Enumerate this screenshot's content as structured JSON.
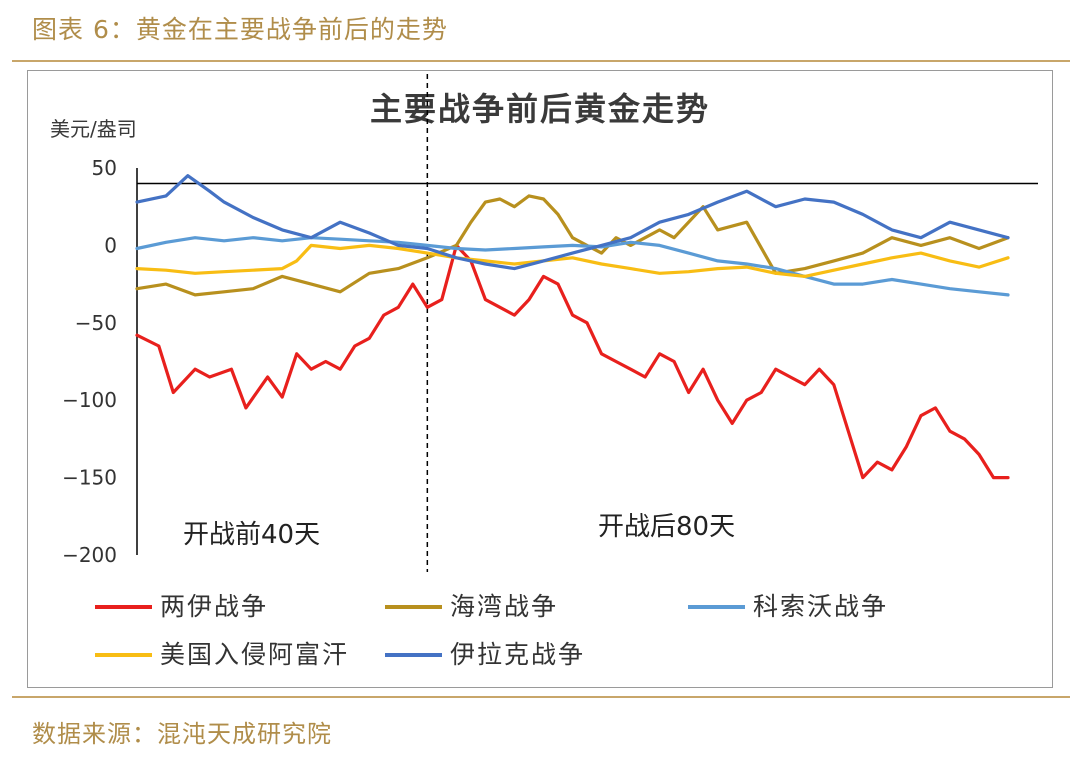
{
  "header": {
    "caption": "图表 6：黄金在主要战争前后的走势"
  },
  "footer": {
    "source": "数据来源：混沌天成研究院"
  },
  "chart_data": {
    "type": "line",
    "title": "主要战争前后黄金走势",
    "ylabel": "美元/盎司",
    "ylim": [
      -200,
      50
    ],
    "yticks": [
      50,
      0,
      -50,
      -100,
      -150,
      -200
    ],
    "x_range": [
      -40,
      80
    ],
    "war_start_day": 0,
    "reference_line_y": 40,
    "annotations": {
      "before": "开战前40天",
      "after": "开战后80天"
    },
    "series": [
      {
        "name": "两伊战争",
        "color": "#e8201d",
        "x": [
          -40,
          -37,
          -35,
          -32,
          -30,
          -27,
          -25,
          -22,
          -20,
          -18,
          -16,
          -14,
          -12,
          -10,
          -8,
          -6,
          -4,
          -2,
          0,
          2,
          4,
          6,
          8,
          10,
          12,
          14,
          16,
          18,
          20,
          22,
          24,
          26,
          28,
          30,
          32,
          34,
          36,
          38,
          40,
          42,
          44,
          46,
          48,
          50,
          52,
          54,
          56,
          58,
          60,
          62,
          64,
          66,
          68,
          70,
          72,
          74,
          76,
          78,
          80
        ],
        "values": [
          -58,
          -65,
          -95,
          -80,
          -85,
          -80,
          -105,
          -85,
          -98,
          -70,
          -80,
          -75,
          -80,
          -65,
          -60,
          -45,
          -40,
          -25,
          -40,
          -35,
          0,
          -10,
          -35,
          -40,
          -45,
          -35,
          -20,
          -25,
          -45,
          -50,
          -70,
          -75,
          -80,
          -85,
          -70,
          -75,
          -95,
          -80,
          -100,
          -115,
          -100,
          -95,
          -80,
          -85,
          -90,
          -80,
          -90,
          -120,
          -150,
          -140,
          -145,
          -130,
          -110,
          -105,
          -120,
          -125,
          -135,
          -150,
          -150
        ],
        "values_note": ""
      },
      {
        "name": "海湾战争",
        "color": "#b8901e",
        "x": [
          -40,
          -36,
          -32,
          -28,
          -24,
          -20,
          -16,
          -12,
          -8,
          -4,
          0,
          4,
          6,
          8,
          10,
          12,
          14,
          16,
          18,
          20,
          22,
          24,
          26,
          28,
          30,
          32,
          34,
          36,
          38,
          40,
          44,
          48,
          52,
          56,
          60,
          64,
          68,
          72,
          76,
          80
        ],
        "values": [
          -28,
          -25,
          -32,
          -30,
          -28,
          -20,
          -25,
          -30,
          -18,
          -15,
          -8,
          0,
          15,
          28,
          30,
          25,
          32,
          30,
          20,
          5,
          0,
          -5,
          5,
          0,
          5,
          10,
          5,
          15,
          25,
          10,
          15,
          -18,
          -15,
          -10,
          -5,
          5,
          0,
          5,
          -2,
          5
        ]
      },
      {
        "name": "科索沃战争",
        "color": "#5b9bd5",
        "x": [
          -40,
          -36,
          -32,
          -28,
          -24,
          -20,
          -16,
          -12,
          -8,
          -4,
          0,
          4,
          8,
          12,
          16,
          20,
          24,
          28,
          32,
          36,
          40,
          44,
          48,
          52,
          56,
          60,
          64,
          68,
          72,
          76,
          80
        ],
        "values": [
          -2,
          2,
          5,
          3,
          5,
          3,
          5,
          4,
          3,
          2,
          0,
          -2,
          -3,
          -2,
          -1,
          0,
          -1,
          2,
          0,
          -5,
          -10,
          -12,
          -15,
          -20,
          -25,
          -25,
          -22,
          -25,
          -28,
          -30,
          -32
        ]
      },
      {
        "name": "美国入侵阿富汗",
        "color": "#f8bd14",
        "x": [
          -40,
          -36,
          -32,
          -28,
          -24,
          -20,
          -18,
          -16,
          -12,
          -8,
          -4,
          0,
          4,
          8,
          12,
          16,
          20,
          24,
          28,
          32,
          36,
          40,
          44,
          48,
          52,
          56,
          60,
          64,
          68,
          72,
          76,
          80
        ],
        "values": [
          -15,
          -16,
          -18,
          -17,
          -16,
          -15,
          -10,
          0,
          -2,
          0,
          -2,
          -5,
          -8,
          -10,
          -12,
          -10,
          -8,
          -12,
          -15,
          -18,
          -17,
          -15,
          -14,
          -18,
          -20,
          -16,
          -12,
          -8,
          -5,
          -10,
          -14,
          -8
        ]
      },
      {
        "name": "伊拉克战争",
        "color": "#4472c4",
        "x": [
          -40,
          -36,
          -33,
          -30,
          -28,
          -24,
          -20,
          -16,
          -12,
          -8,
          -4,
          0,
          4,
          8,
          12,
          16,
          20,
          24,
          28,
          32,
          36,
          40,
          44,
          48,
          52,
          56,
          60,
          64,
          68,
          72,
          76,
          80
        ],
        "values": [
          28,
          32,
          45,
          35,
          28,
          18,
          10,
          5,
          15,
          8,
          0,
          -2,
          -8,
          -12,
          -15,
          -10,
          -5,
          0,
          5,
          15,
          20,
          28,
          35,
          25,
          30,
          28,
          20,
          10,
          5,
          15,
          10,
          5
        ]
      }
    ]
  }
}
